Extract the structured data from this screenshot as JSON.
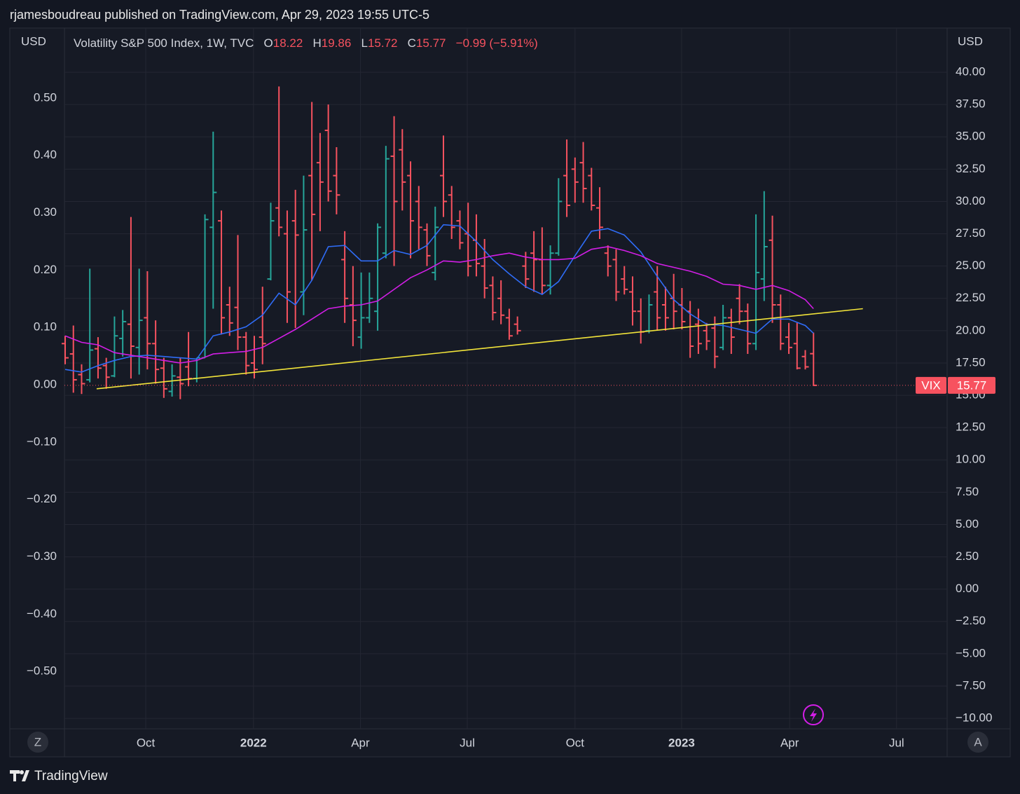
{
  "header": {
    "byline": "rjamesboudreau published on TradingView.com, Apr 29, 2023 19:55 UTC-5",
    "brand": "TradingView",
    "symbol": "Volatility S&P 500 Index, 1W, TVC",
    "ohlc_labels": [
      "O",
      "H",
      "L",
      "C"
    ],
    "change": "−0.99 (−5.91%)",
    "buttons": [
      "Z",
      "A"
    ]
  },
  "chart_data": {
    "type": "ohlc",
    "ylabel": "USD",
    "y2label": "USD",
    "x": [
      0,
      1,
      2,
      3,
      4,
      5,
      6,
      7,
      8,
      9,
      10,
      11,
      12,
      13,
      14,
      15,
      16,
      17,
      18,
      19,
      20,
      21,
      22,
      23,
      24,
      25,
      26,
      27,
      28,
      29,
      30,
      31,
      32,
      33,
      34,
      35,
      36,
      37,
      38,
      39,
      40,
      41,
      42,
      43,
      44,
      45,
      46,
      47,
      48,
      49,
      50,
      51,
      52,
      53,
      54,
      55,
      56,
      57,
      58,
      59,
      60,
      61,
      62,
      63,
      64,
      65,
      66,
      67,
      68,
      69,
      70,
      71,
      72,
      73,
      74,
      75,
      76,
      77,
      78,
      79,
      80,
      81,
      82,
      83,
      84,
      85,
      86,
      87,
      88,
      89,
      90,
      91
    ],
    "xlim": [
      -0.085,
      107.25
    ],
    "xticks": [
      {
        "value": 9.8,
        "label": "Oct"
      },
      {
        "value": 22.9,
        "label": "2022"
      },
      {
        "value": 35.9,
        "label": "Apr"
      },
      {
        "value": 48.9,
        "label": "Jul"
      },
      {
        "value": 62.0,
        "label": "Oct"
      },
      {
        "value": 74.96,
        "label": "2023"
      },
      {
        "value": 88.1,
        "label": "Apr"
      },
      {
        "value": 101.1,
        "label": "Jul"
      }
    ],
    "ylim": [
      -0.6,
      0.622
    ],
    "yticks": [
      {
        "value": 0.5,
        "label": "0.50"
      },
      {
        "value": 0.4,
        "label": "0.40"
      },
      {
        "value": 0.3,
        "label": "0.30"
      },
      {
        "value": 0.2,
        "label": "0.20"
      },
      {
        "value": 0.1,
        "label": "0.10"
      },
      {
        "value": 0,
        "label": "0.00"
      },
      {
        "value": -0.1,
        "label": "−0.10"
      },
      {
        "value": -0.2,
        "label": "−0.20"
      },
      {
        "value": -0.3,
        "label": "−0.30"
      },
      {
        "value": -0.4,
        "label": "−0.40"
      },
      {
        "value": -0.5,
        "label": "−0.50"
      }
    ],
    "y2lim": [
      -10.81,
      43.42
    ],
    "y2ticks": [
      {
        "value": 40,
        "label": "40.00"
      },
      {
        "value": 37.5,
        "label": "37.50"
      },
      {
        "value": 35,
        "label": "35.00"
      },
      {
        "value": 32.5,
        "label": "32.50"
      },
      {
        "value": 30,
        "label": "30.00"
      },
      {
        "value": 27.5,
        "label": "27.50"
      },
      {
        "value": 25,
        "label": "25.00"
      },
      {
        "value": 22.5,
        "label": "22.50"
      },
      {
        "value": 20,
        "label": "20.00"
      },
      {
        "value": 17.5,
        "label": "17.50"
      },
      {
        "value": 15,
        "label": "15.00"
      },
      {
        "value": 12.5,
        "label": "12.50"
      },
      {
        "value": 10,
        "label": "10.00"
      },
      {
        "value": 7.5,
        "label": "7.50"
      },
      {
        "value": 5,
        "label": "5.00"
      },
      {
        "value": 2.5,
        "label": "2.50"
      },
      {
        "value": 0,
        "label": "0.00"
      },
      {
        "value": -2.5,
        "label": "−2.50"
      },
      {
        "value": -5,
        "label": "−5.00"
      },
      {
        "value": -7.5,
        "label": "−7.50"
      },
      {
        "value": -10,
        "label": "−10.00"
      }
    ],
    "grid": true,
    "series": [
      {
        "name": "VIX",
        "type": "ohlc",
        "axis": "y2",
        "up_color": "#26a69a",
        "down_color": "#f7525f",
        "open": [
          19.0,
          18.2,
          16.6,
          16.2,
          18.6,
          17.3,
          16.5,
          19.4,
          20.5,
          18.7,
          21.0,
          19.0,
          17.1,
          15.3,
          16.4,
          17.2,
          16.3,
          17.9,
          28.0,
          28.5,
          22.0,
          21.8,
          19.5,
          17.5,
          19.5,
          24.0,
          29.5,
          27.5,
          28.5,
          23.0,
          32.0,
          33.0,
          35.5,
          32.0,
          25.5,
          22.0,
          19.5,
          21.0,
          21.5,
          26.0,
          33.5,
          34.0,
          32.0,
          30.0,
          27.8,
          24.5,
          32.0,
          30.5,
          28.5,
          27.5,
          27.0,
          25.0,
          23.5,
          22.5,
          21.0,
          20.5,
          25.0,
          26.0,
          25.5,
          23.5,
          26.0,
          32.0,
          32.5,
          33.0,
          32.0,
          29.5,
          26.0,
          25.5,
          24.0,
          23.0,
          21.5,
          20.0,
          23.0,
          22.0,
          22.5,
          22.0,
          21.5,
          20.5,
          20.0,
          20.2,
          18.7,
          21.0,
          22.5,
          21.5,
          19.0,
          24.0,
          27.0,
          22.0,
          19.5,
          19.0,
          18.0,
          18.22
        ],
        "high": [
          19.6,
          20.4,
          17.4,
          24.8,
          19.5,
          17.9,
          21.1,
          21.6,
          28.8,
          24.8,
          24.6,
          20.8,
          17.9,
          17.4,
          17.9,
          19.9,
          17.9,
          29.0,
          35.4,
          29.3,
          23.4,
          27.4,
          19.9,
          19.6,
          23.4,
          29.9,
          38.9,
          29.3,
          30.9,
          32.0,
          37.7,
          35.3,
          37.5,
          34.2,
          27.7,
          25.0,
          24.5,
          24.5,
          28.3,
          34.3,
          36.6,
          35.6,
          33.1,
          31.2,
          28.3,
          29.6,
          35.1,
          31.2,
          29.3,
          29.9,
          29.0,
          27.1,
          24.2,
          23.9,
          21.7,
          21.1,
          26.1,
          27.7,
          28.0,
          26.6,
          31.8,
          34.8,
          33.4,
          34.6,
          32.6,
          31.1,
          26.6,
          26.3,
          25.0,
          24.2,
          22.5,
          22.8,
          25.0,
          23.4,
          24.4,
          23.3,
          22.3,
          21.7,
          20.6,
          21.1,
          22.0,
          21.7,
          23.6,
          22.1,
          29.0,
          30.8,
          28.9,
          22.8,
          20.6,
          20.6,
          18.5,
          19.86
        ],
        "low": [
          17.4,
          15.2,
          15.1,
          16.0,
          16.3,
          15.5,
          16.4,
          18.0,
          16.3,
          16.6,
          17.0,
          15.9,
          14.8,
          14.9,
          14.7,
          15.7,
          16.0,
          17.9,
          21.7,
          19.7,
          19.6,
          18.5,
          16.6,
          16.3,
          17.4,
          23.9,
          27.3,
          20.6,
          20.2,
          21.2,
          23.9,
          27.7,
          30.0,
          29.0,
          20.6,
          18.8,
          18.6,
          20.6,
          20.0,
          25.6,
          25.0,
          29.3,
          25.6,
          26.3,
          25.0,
          23.9,
          28.8,
          27.1,
          26.3,
          24.2,
          24.2,
          22.5,
          20.8,
          20.5,
          19.3,
          19.7,
          23.3,
          23.0,
          22.8,
          22.8,
          25.8,
          28.8,
          29.9,
          29.9,
          29.3,
          27.1,
          24.2,
          22.3,
          22.8,
          20.4,
          19.0,
          19.8,
          20.0,
          20.0,
          20.1,
          20.1,
          17.9,
          18.2,
          18.5,
          17.1,
          18.5,
          18.2,
          20.5,
          18.2,
          18.5,
          22.3,
          20.6,
          18.5,
          18.2,
          17.0,
          17.0,
          15.72
        ],
        "close": [
          17.9,
          16.2,
          15.9,
          18.5,
          17.1,
          16.4,
          19.6,
          20.7,
          18.8,
          20.8,
          19.0,
          17.0,
          15.5,
          16.5,
          15.9,
          16.3,
          17.9,
          28.6,
          30.7,
          21.0,
          20.6,
          19.5,
          17.3,
          17.0,
          19.0,
          28.5,
          28.0,
          23.0,
          27.4,
          27.8,
          29.0,
          31.5,
          30.8,
          30.5,
          22.5,
          20.8,
          21.0,
          22.5,
          28.0,
          33.3,
          30.0,
          31.5,
          28.5,
          28.0,
          25.8,
          28.0,
          30.0,
          28.0,
          26.8,
          25.0,
          25.2,
          23.3,
          21.4,
          21.2,
          19.6,
          20.0,
          24.0,
          25.5,
          23.5,
          26.0,
          30.0,
          29.7,
          31.5,
          31.0,
          29.7,
          28.0,
          25.0,
          23.0,
          23.2,
          21.5,
          19.9,
          22.0,
          21.0,
          21.0,
          21.5,
          20.7,
          18.8,
          19.0,
          19.2,
          18.0,
          21.0,
          19.5,
          21.5,
          19.0,
          24.5,
          26.5,
          22.0,
          19.0,
          18.7,
          17.1,
          17.2,
          15.77
        ]
      },
      {
        "type": "line",
        "axis": "y2",
        "color": "#2f6cf6",
        "x": [
          0,
          2,
          4,
          6,
          8,
          10,
          12,
          14,
          16,
          18,
          20,
          22,
          24,
          26,
          28,
          30,
          32,
          34,
          36,
          38,
          40,
          42,
          44,
          46,
          48,
          50,
          52,
          54,
          56,
          58,
          60,
          62,
          64,
          66,
          68,
          70,
          72,
          74,
          76,
          78,
          80,
          82,
          84,
          86,
          88,
          90,
          91
        ],
        "values": [
          17.0,
          16.8,
          17.3,
          17.7,
          18.0,
          18.1,
          18.0,
          17.9,
          17.8,
          19.6,
          19.9,
          20.3,
          21.2,
          22.9,
          22.0,
          23.9,
          26.5,
          26.6,
          25.4,
          25.4,
          26.2,
          25.9,
          26.6,
          28.2,
          28.1,
          26.9,
          25.5,
          24.4,
          23.4,
          22.8,
          23.8,
          25.8,
          27.7,
          27.9,
          27.4,
          26.1,
          24.2,
          22.4,
          21.3,
          20.5,
          20.4,
          20.1,
          19.8,
          20.9,
          20.9,
          20.4,
          19.8
        ]
      },
      {
        "type": "line",
        "axis": "y2",
        "color": "#d21ee6",
        "x": [
          0,
          2,
          4,
          6,
          8,
          10,
          12,
          14,
          16,
          18,
          20,
          22,
          24,
          26,
          28,
          30,
          32,
          34,
          36,
          38,
          40,
          42,
          44,
          46,
          48,
          50,
          52,
          54,
          56,
          58,
          60,
          62,
          64,
          66,
          68,
          70,
          72,
          74,
          76,
          78,
          80,
          82,
          84,
          86,
          88,
          90,
          91
        ],
        "values": [
          19.6,
          19.1,
          18.9,
          18.3,
          18.1,
          17.9,
          17.7,
          17.5,
          17.7,
          18.2,
          18.3,
          18.4,
          18.7,
          19.4,
          20.1,
          20.9,
          21.7,
          21.9,
          22.0,
          22.3,
          23.2,
          24.1,
          24.7,
          25.4,
          25.3,
          25.5,
          25.8,
          26.0,
          25.7,
          25.5,
          25.5,
          25.6,
          26.3,
          26.5,
          26.2,
          25.8,
          25.2,
          24.9,
          24.6,
          24.2,
          23.6,
          23.5,
          23.2,
          23.5,
          23.1,
          22.4,
          21.7
        ]
      },
      {
        "type": "line",
        "axis": "y2",
        "color": "#f2e43a",
        "x": [
          3.83,
          97.0
        ],
        "values": [
          15.5,
          21.7
        ]
      }
    ]
  }
}
